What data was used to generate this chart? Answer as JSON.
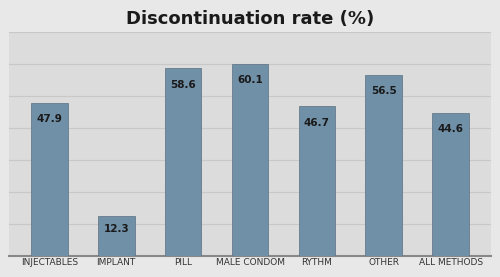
{
  "title": "Discontinuation rate (%)",
  "categories": [
    "INJECTABLES",
    "IMPLANT",
    "PILL",
    "MALE CONDOM",
    "RYTHM",
    "OTHER",
    "ALL METHODS"
  ],
  "values": [
    47.9,
    12.3,
    58.6,
    60.1,
    46.7,
    56.5,
    44.6
  ],
  "bar_color": "#7090a8",
  "bar_edge_color": "#5a7080",
  "label_fontsize": 7.5,
  "title_fontsize": 13,
  "tick_fontsize": 6.5,
  "background_top": "#e8e8e8",
  "background_mid": "#d0d0d0",
  "plot_bg_color": "#dcdcdc",
  "ylim": [
    0,
    70
  ],
  "grid_color": "#c8c8c8",
  "value_label_color": "#1a1a1a",
  "title_color": "#1a1a1a",
  "border_color": "#888888"
}
